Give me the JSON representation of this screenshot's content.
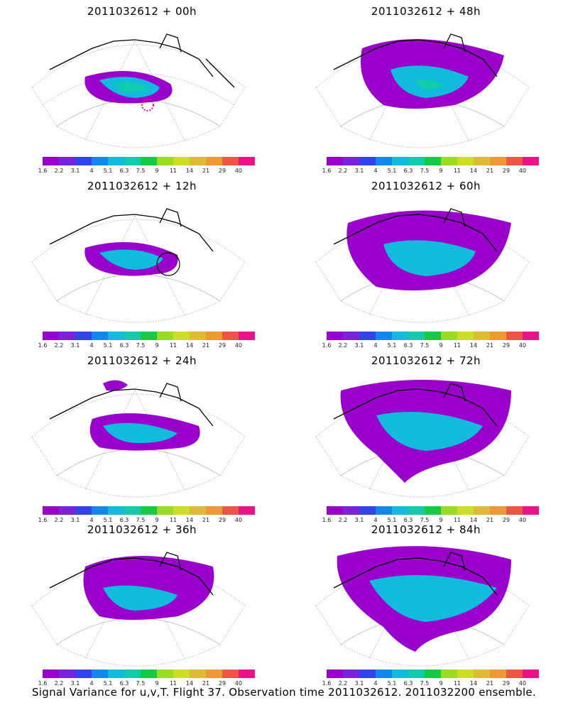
{
  "panels": [
    {
      "title": "2011032612 + 00h"
    },
    {
      "title": "2011032612 + 48h"
    },
    {
      "title": "2011032612 + 12h"
    },
    {
      "title": "2011032612 + 60h"
    },
    {
      "title": "2011032612 + 24h"
    },
    {
      "title": "2011032612 + 72h"
    },
    {
      "title": "2011032612 + 36h"
    },
    {
      "title": "2011032612 + 84h"
    }
  ],
  "colorbar": {
    "labels": [
      "1.6",
      "2.2",
      "3.1",
      "4",
      "5.1",
      "6.3",
      "7.5",
      "9",
      "11",
      "14",
      "21",
      "29",
      "40"
    ],
    "colors": [
      "#9900cc",
      "#7a22dd",
      "#3344ee",
      "#1188ee",
      "#11bbdd",
      "#11ccaa",
      "#11cc44",
      "#99dd22",
      "#ccdd22",
      "#ddbb33",
      "#ee9933",
      "#ee5544",
      "#ee1188"
    ]
  },
  "caption": "Signal Variance for u,v,T. Flight 37. Observation time 2011032612. 2011032200 ensemble."
}
